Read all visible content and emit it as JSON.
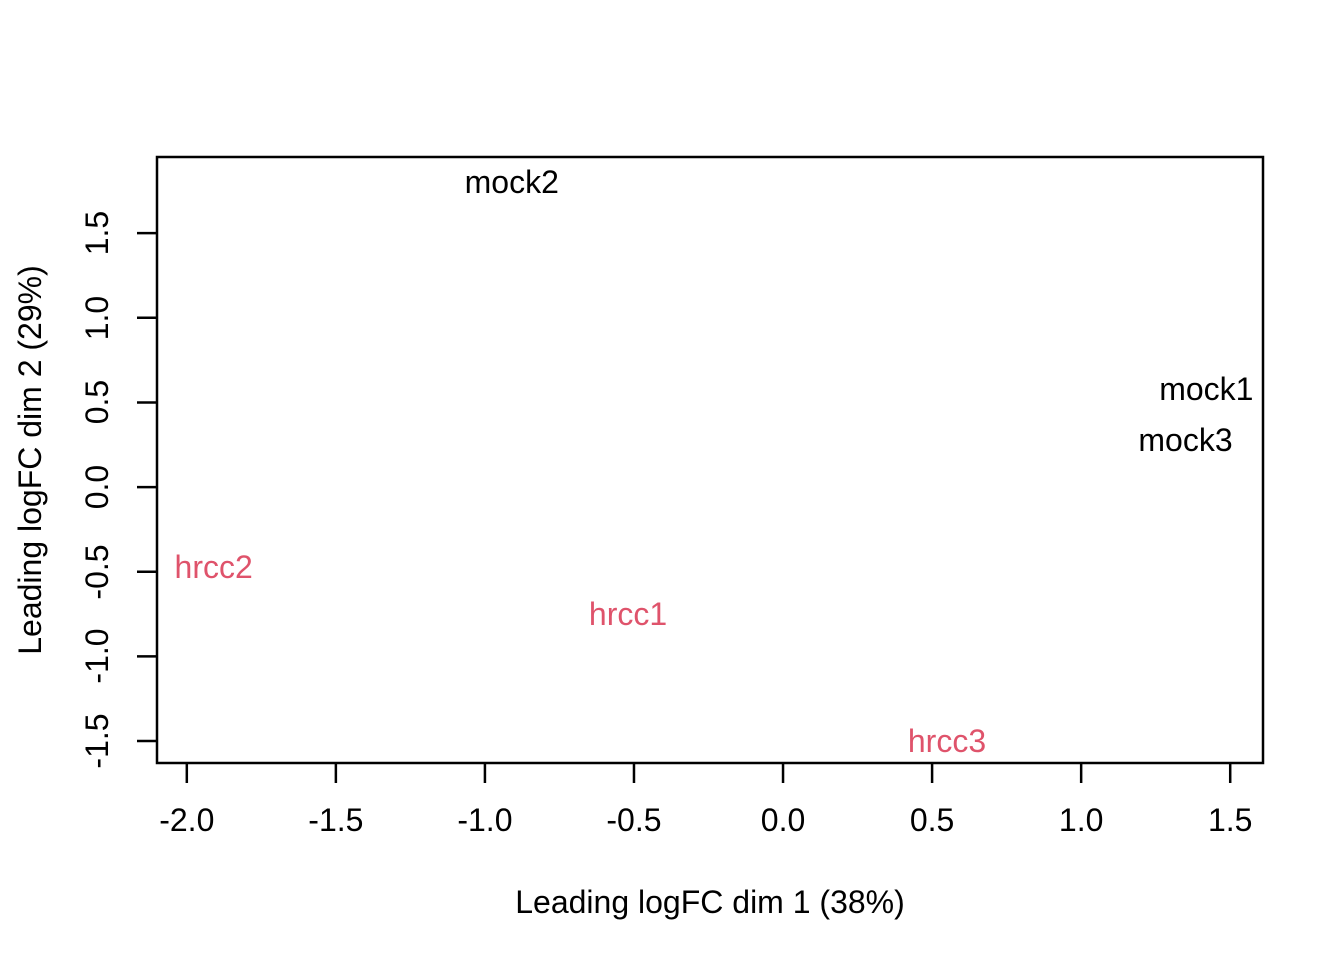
{
  "figure": {
    "background": "#ffffff",
    "text_color": "#000000",
    "axis_color": "#000000"
  },
  "chart_data": {
    "type": "scatter",
    "subtype": "mds-plot-text-labels",
    "title": "",
    "xlabel": "Leading logFC dim 1 (38%)",
    "ylabel": "Leading logFC dim 2 (29%)",
    "xlim": [
      -2.1,
      1.61
    ],
    "ylim": [
      -1.63,
      1.95
    ],
    "x_ticks": [
      -2.0,
      -1.5,
      -1.0,
      -0.5,
      0.0,
      0.5,
      1.0,
      1.5
    ],
    "x_tick_labels": [
      "-2.0",
      "-1.5",
      "-1.0",
      "-0.5",
      "0.0",
      "0.5",
      "1.0",
      "1.5"
    ],
    "y_ticks": [
      1.5,
      1.0,
      0.5,
      0.0,
      -0.5,
      -1.0,
      -1.5
    ],
    "y_tick_labels": [
      "1.5",
      "1.0",
      "0.5",
      "0.0",
      "-0.5",
      "-1.0",
      "-1.5"
    ],
    "grid": false,
    "legend_position": "none",
    "point_style": "text-labels",
    "series": [
      {
        "name": "mock",
        "color": "#000000",
        "points": [
          {
            "label": "mock1",
            "x": 1.42,
            "y": 0.58
          },
          {
            "label": "mock2",
            "x": -0.91,
            "y": 1.8
          },
          {
            "label": "mock3",
            "x": 1.35,
            "y": 0.28
          }
        ]
      },
      {
        "name": "hrcc",
        "color": "#DF536B",
        "points": [
          {
            "label": "hrcc1",
            "x": -0.52,
            "y": -0.75
          },
          {
            "label": "hrcc2",
            "x": -1.91,
            "y": -0.47
          },
          {
            "label": "hrcc3",
            "x": 0.55,
            "y": -1.5
          }
        ]
      }
    ]
  }
}
